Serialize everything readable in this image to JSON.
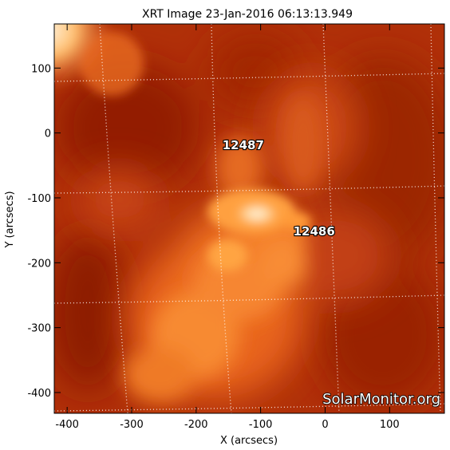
{
  "title": "XRT Image 23-Jan-2016 06:13:13.949",
  "x_axis": {
    "label": "X (arcsecs)",
    "range": [
      -420,
      185
    ],
    "ticks": [
      -400,
      -300,
      -200,
      -100,
      0,
      100
    ]
  },
  "y_axis": {
    "label": "Y (arcsecs)",
    "range": [
      -432,
      168
    ],
    "ticks": [
      100,
      0,
      -100,
      -200,
      -300,
      -400
    ]
  },
  "regions": [
    {
      "id": "12487",
      "label": "12487",
      "x": -127,
      "y": -25
    },
    {
      "id": "12486",
      "label": "12486",
      "x": -17,
      "y": -158
    }
  ],
  "watermark": "SolarMonitor.org",
  "colors": {
    "background": "#b03008",
    "dark": "#8e1f04",
    "bright": "#ff9c30",
    "core": "#fff0d0"
  }
}
